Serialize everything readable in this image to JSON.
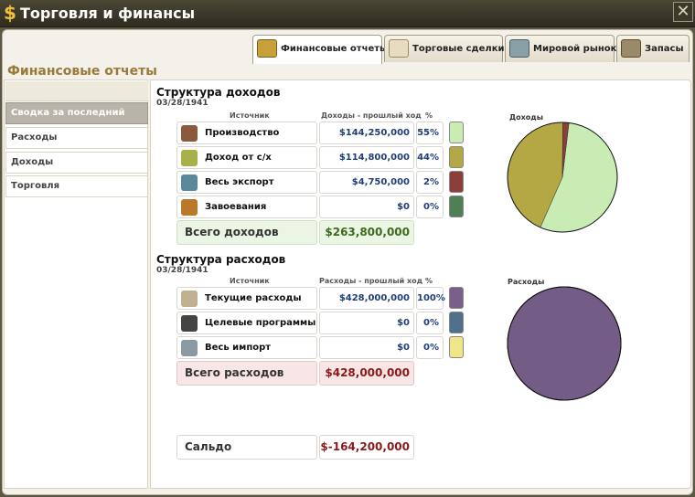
{
  "window": {
    "title": "Торговля и финансы"
  },
  "tabs": [
    {
      "label": "Финансовые отчеты",
      "active": true,
      "icon": "money-bag-icon"
    },
    {
      "label": "Торговые сделки",
      "active": false,
      "icon": "document-icon"
    },
    {
      "label": "Мировой рынок",
      "active": false,
      "icon": "ship-icon"
    },
    {
      "label": "Запасы",
      "active": false,
      "icon": "crate-icon"
    }
  ],
  "section_heading": "Финансовые отчеты",
  "sidebar": {
    "items": [
      {
        "label": "Сводка за последний ход",
        "active": true
      },
      {
        "label": "Расходы",
        "active": false
      },
      {
        "label": "Доходы",
        "active": false
      },
      {
        "label": "Торговля",
        "active": false
      }
    ]
  },
  "income": {
    "title": "Структура доходов",
    "date": "03/28/1941",
    "col_source": "Источник",
    "col_value": "Доходы - прошлый ход",
    "col_pct": "%",
    "rows": [
      {
        "label": "Производство",
        "value": "$144,250,000",
        "pct": "55%",
        "color": "#c8ecb4",
        "icon": "factory-icon"
      },
      {
        "label": "Доход от с/х",
        "value": "$114,800,000",
        "pct": "44%",
        "color": "#b4a845",
        "icon": "wheat-icon"
      },
      {
        "label": "Весь экспорт",
        "value": "$4,750,000",
        "pct": "2%",
        "color": "#8a3f3a",
        "icon": "export-icon"
      },
      {
        "label": "Завоевания",
        "value": "$0",
        "pct": "0%",
        "color": "#4f7f54",
        "icon": "money-sack-icon"
      }
    ],
    "total_label": "Всего доходов",
    "total_value": "$263,800,000",
    "pie_title": "Доходы"
  },
  "expenses": {
    "title": "Структура расходов",
    "date": "03/28/1941",
    "col_source": "Источник",
    "col_value": "Расходы - прошлый ход",
    "col_pct": "%",
    "rows": [
      {
        "label": "Текущие расходы",
        "value": "$428,000,000",
        "pct": "100%",
        "color": "#7a5f8a",
        "icon": "gear-icon"
      },
      {
        "label": "Целевые программы",
        "value": "$0",
        "pct": "0%",
        "color": "#4f6f8a",
        "icon": "hat-icon"
      },
      {
        "label": "Весь импорт",
        "value": "$0",
        "pct": "0%",
        "color": "#efe787",
        "icon": "import-icon"
      }
    ],
    "total_label": "Всего расходов",
    "total_value": "$428,000,000",
    "pie_title": "Расходы"
  },
  "balance": {
    "label": "Сальдо",
    "value": "$-164,200,000"
  },
  "chart_data": [
    {
      "type": "pie",
      "title": "Доходы",
      "categories": [
        "Производство",
        "Доход от с/х",
        "Весь экспорт",
        "Завоевания"
      ],
      "values": [
        144250000,
        114800000,
        4750000,
        0
      ],
      "colors": [
        "#c8ecb4",
        "#b4a845",
        "#8a3f3a",
        "#4f7f54"
      ]
    },
    {
      "type": "pie",
      "title": "Расходы",
      "categories": [
        "Текущие расходы",
        "Целевые программы",
        "Весь импорт"
      ],
      "values": [
        428000000,
        0,
        0
      ],
      "colors": [
        "#735c86",
        "#4f6f8a",
        "#efe787"
      ]
    }
  ]
}
